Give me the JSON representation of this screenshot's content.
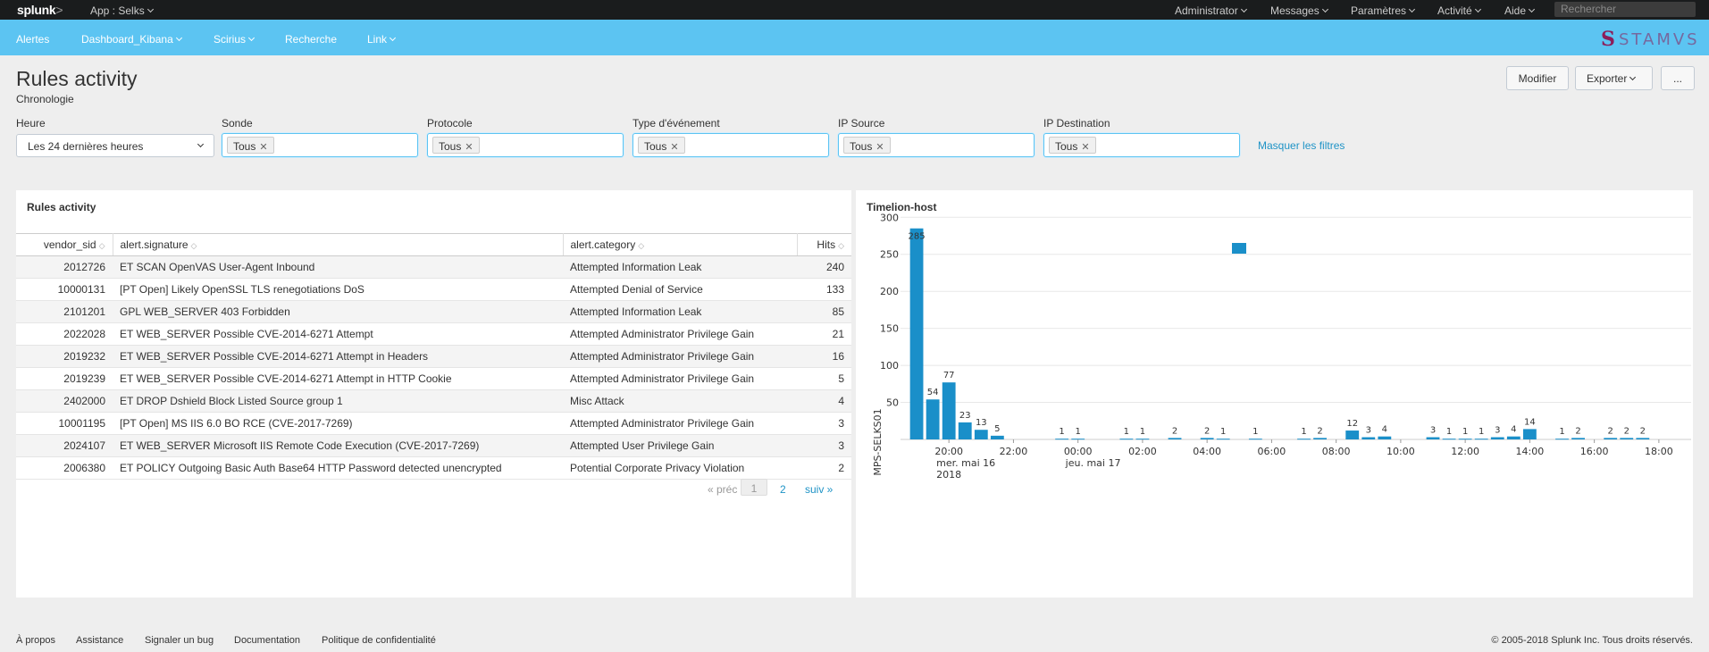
{
  "topbar": {
    "logo_text": "splunk",
    "logo_suffix": ">",
    "app_label": "App : Selks",
    "menu": [
      "Administrator",
      "Messages",
      "Paramètres",
      "Activité",
      "Aide"
    ],
    "search_placeholder": "Rechercher"
  },
  "appbar": {
    "items": [
      "Alertes",
      "Dashboard_Kibana",
      "Scirius",
      "Recherche",
      "Link"
    ],
    "brand_initial": "S",
    "brand_text": "STAMVS"
  },
  "page": {
    "title": "Rules activity",
    "subtitle": "Chronologie",
    "buttons": {
      "edit": "Modifier",
      "export": "Exporter",
      "more": "..."
    }
  },
  "filters": {
    "time": {
      "label": "Heure",
      "value": "Les 24 dernières heures"
    },
    "multi": [
      {
        "label": "Sonde",
        "token": "Tous"
      },
      {
        "label": "Protocole",
        "token": "Tous"
      },
      {
        "label": "Type d'événement",
        "token": "Tous"
      },
      {
        "label": "IP Source",
        "token": "Tous"
      },
      {
        "label": "IP Destination",
        "token": "Tous"
      }
    ],
    "hide_link": "Masquer les filtres"
  },
  "rules_panel": {
    "title": "Rules activity",
    "columns": [
      "vendor_sid",
      "alert.signature",
      "alert.category",
      "Hits"
    ],
    "rows": [
      [
        "2012726",
        "ET SCAN OpenVAS User-Agent Inbound",
        "Attempted Information Leak",
        "240"
      ],
      [
        "10000131",
        "[PT Open] Likely OpenSSL TLS renegotiations DoS",
        "Attempted Denial of Service",
        "133"
      ],
      [
        "2101201",
        "GPL WEB_SERVER 403 Forbidden",
        "Attempted Information Leak",
        "85"
      ],
      [
        "2022028",
        "ET WEB_SERVER Possible CVE-2014-6271 Attempt",
        "Attempted Administrator Privilege Gain",
        "21"
      ],
      [
        "2019232",
        "ET WEB_SERVER Possible CVE-2014-6271 Attempt in Headers",
        "Attempted Administrator Privilege Gain",
        "16"
      ],
      [
        "2019239",
        "ET WEB_SERVER Possible CVE-2014-6271 Attempt in HTTP Cookie",
        "Attempted Administrator Privilege Gain",
        "5"
      ],
      [
        "2402000",
        "ET DROP Dshield Block Listed Source group 1",
        "Misc Attack",
        "4"
      ],
      [
        "10001195",
        "[PT Open] MS IIS 6.0 BO RCE (CVE-2017-7269)",
        "Attempted Administrator Privilege Gain",
        "3"
      ],
      [
        "2024107",
        "ET WEB_SERVER Microsoft IIS Remote Code Execution (CVE-2017-7269)",
        "Attempted User Privilege Gain",
        "3"
      ],
      [
        "2006380",
        "ET POLICY Outgoing Basic Auth Base64 HTTP Password detected unencrypted",
        "Potential Corporate Privacy Violation",
        "2"
      ]
    ],
    "pager": {
      "prev": "« préc",
      "page1": "1",
      "page2": "2",
      "next": "suiv »"
    }
  },
  "timelion_panel": {
    "title": "Timelion-host"
  },
  "chart_data": {
    "type": "bar",
    "title": "Timelion-host",
    "ylabel": "MPS-SELKS01",
    "ylim": [
      0,
      310
    ],
    "yticks": [
      50,
      100,
      150,
      200,
      250,
      300
    ],
    "x_start_hour": 18.5,
    "x_end_hour": 43.0,
    "xticks": [
      {
        "hour": 20,
        "label": "20:00",
        "sub": [
          "mer. mai 16",
          "2018"
        ]
      },
      {
        "hour": 22,
        "label": "22:00"
      },
      {
        "hour": 24,
        "label": "00:00",
        "sub": [
          "jeu. mai 17"
        ]
      },
      {
        "hour": 26,
        "label": "02:00"
      },
      {
        "hour": 28,
        "label": "04:00"
      },
      {
        "hour": 30,
        "label": "06:00"
      },
      {
        "hour": 32,
        "label": "08:00"
      },
      {
        "hour": 34,
        "label": "10:00"
      },
      {
        "hour": 36,
        "label": "12:00"
      },
      {
        "hour": 38,
        "label": "14:00"
      },
      {
        "hour": 40,
        "label": "16:00"
      },
      {
        "hour": 42,
        "label": "18:00"
      }
    ],
    "series": [
      {
        "name": "MPS-SELKS01",
        "color": "#1a8fc9",
        "points": [
          {
            "hour": 19.0,
            "value": 285
          },
          {
            "hour": 19.5,
            "value": 54
          },
          {
            "hour": 20.0,
            "value": 77
          },
          {
            "hour": 20.5,
            "value": 23
          },
          {
            "hour": 21.0,
            "value": 13
          },
          {
            "hour": 21.5,
            "value": 5
          },
          {
            "hour": 23.5,
            "value": 1
          },
          {
            "hour": 24.0,
            "value": 1
          },
          {
            "hour": 25.5,
            "value": 1
          },
          {
            "hour": 26.0,
            "value": 1
          },
          {
            "hour": 27.0,
            "value": 2
          },
          {
            "hour": 28.0,
            "value": 2
          },
          {
            "hour": 28.5,
            "value": 1
          },
          {
            "hour": 29.5,
            "value": 1
          },
          {
            "hour": 31.0,
            "value": 1
          },
          {
            "hour": 31.5,
            "value": 2
          },
          {
            "hour": 32.5,
            "value": 12
          },
          {
            "hour": 33.0,
            "value": 3
          },
          {
            "hour": 33.5,
            "value": 4
          },
          {
            "hour": 35.0,
            "value": 3
          },
          {
            "hour": 35.5,
            "value": 1
          },
          {
            "hour": 36.0,
            "value": 1
          },
          {
            "hour": 36.5,
            "value": 1
          },
          {
            "hour": 37.0,
            "value": 3
          },
          {
            "hour": 37.5,
            "value": 4
          },
          {
            "hour": 38.0,
            "value": 14
          },
          {
            "hour": 39.0,
            "value": 1
          },
          {
            "hour": 39.5,
            "value": 2
          },
          {
            "hour": 40.5,
            "value": 2
          },
          {
            "hour": 41.0,
            "value": 2
          },
          {
            "hour": 41.5,
            "value": 2
          }
        ]
      }
    ]
  },
  "footer": {
    "links": [
      "À propos",
      "Assistance",
      "Signaler un bug",
      "Documentation",
      "Politique de confidentialité"
    ],
    "copyright": "© 2005-2018 Splunk Inc. Tous droits réservés."
  }
}
